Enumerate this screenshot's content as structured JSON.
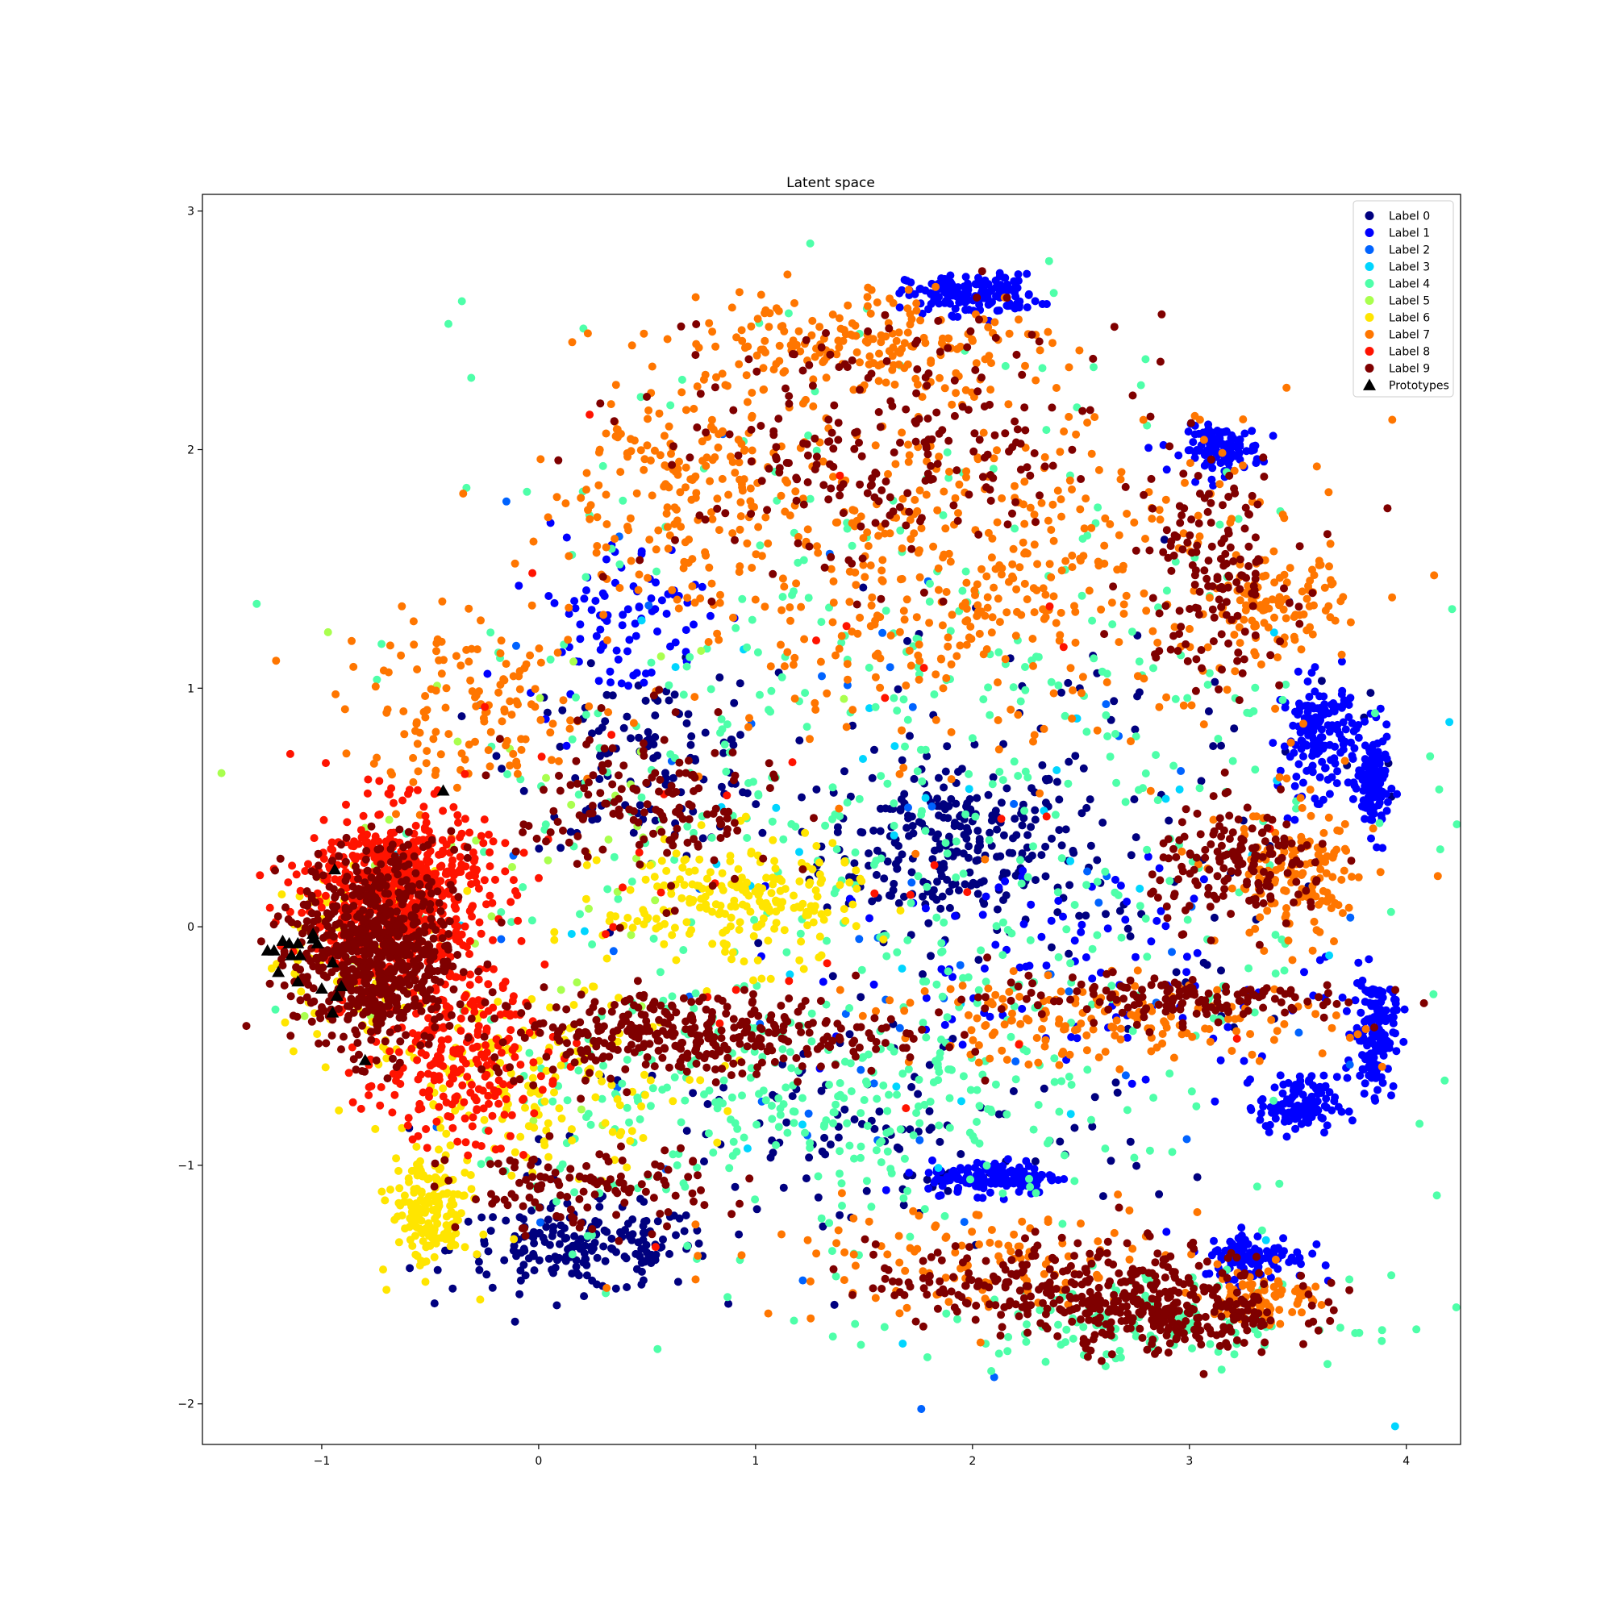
{
  "chart_data": {
    "type": "scatter",
    "title": "Latent space",
    "xlabel": "",
    "ylabel": "",
    "xlim": [
      -1.55,
      4.25
    ],
    "ylim": [
      -2.17,
      3.07
    ],
    "xticks": [
      -1,
      0,
      1,
      2,
      3,
      4
    ],
    "yticks": [
      -2,
      -1,
      0,
      1,
      2,
      3
    ],
    "xtick_labels": [
      "−1",
      "0",
      "1",
      "2",
      "3",
      "4"
    ],
    "ytick_labels": [
      "−2",
      "−1",
      "0",
      "1",
      "2",
      "3"
    ],
    "grid": false,
    "legend_position": "top-right",
    "series": [
      {
        "name": "Label 0",
        "color": "#00007f",
        "marker": "circle",
        "clusters": [
          {
            "center": [
              1.9,
              0.35
            ],
            "spread": [
              0.5,
              0.3
            ],
            "count": 260
          },
          {
            "center": [
              0.2,
              -1.35
            ],
            "spread": [
              0.5,
              0.15
            ],
            "count": 200
          },
          {
            "center": [
              0.5,
              0.7
            ],
            "spread": [
              0.5,
              0.3
            ],
            "count": 120
          },
          {
            "center": [
              1.5,
              -0.9
            ],
            "spread": [
              1.2,
              0.4
            ],
            "count": 120
          },
          {
            "center": [
              2.5,
              0.5
            ],
            "spread": [
              1.0,
              0.8
            ],
            "count": 100
          }
        ]
      },
      {
        "name": "Label 1",
        "color": "#0000ff",
        "marker": "circle",
        "clusters": [
          {
            "center": [
              2.0,
              2.65
            ],
            "spread": [
              0.25,
              0.07
            ],
            "count": 160
          },
          {
            "center": [
              3.15,
              2.0
            ],
            "spread": [
              0.15,
              0.08
            ],
            "count": 120
          },
          {
            "center": [
              3.6,
              0.8
            ],
            "spread": [
              0.15,
              0.2
            ],
            "count": 160
          },
          {
            "center": [
              3.85,
              0.6
            ],
            "spread": [
              0.06,
              0.18
            ],
            "count": 120
          },
          {
            "center": [
              3.85,
              -0.45
            ],
            "spread": [
              0.08,
              0.2
            ],
            "count": 150
          },
          {
            "center": [
              3.5,
              -0.75
            ],
            "spread": [
              0.15,
              0.1
            ],
            "count": 120
          },
          {
            "center": [
              2.1,
              -1.05
            ],
            "spread": [
              0.25,
              0.06
            ],
            "count": 150
          },
          {
            "center": [
              3.3,
              -1.38
            ],
            "spread": [
              0.2,
              0.08
            ],
            "count": 110
          },
          {
            "center": [
              0.35,
              1.3
            ],
            "spread": [
              0.35,
              0.3
            ],
            "count": 90
          },
          {
            "center": [
              2.5,
              -0.2
            ],
            "spread": [
              1.0,
              0.4
            ],
            "count": 110
          }
        ]
      },
      {
        "name": "Label 2",
        "color": "#0063ff",
        "marker": "circle",
        "clusters": [
          {
            "center": [
              1.5,
              0.0
            ],
            "spread": [
              1.8,
              1.5
            ],
            "count": 70
          }
        ]
      },
      {
        "name": "Label 3",
        "color": "#00d5ff",
        "marker": "circle",
        "clusters": [
          {
            "center": [
              1.5,
              0.2
            ],
            "spread": [
              1.8,
              1.5
            ],
            "count": 45
          }
        ]
      },
      {
        "name": "Label 4",
        "color": "#4effa9",
        "marker": "circle",
        "clusters": [
          {
            "center": [
              1.7,
              0.5
            ],
            "spread": [
              1.7,
              1.6
            ],
            "count": 550
          },
          {
            "center": [
              1.2,
              -0.8
            ],
            "spread": [
              1.2,
              0.35
            ],
            "count": 220
          },
          {
            "center": [
              2.8,
              -1.65
            ],
            "spread": [
              0.8,
              0.15
            ],
            "count": 130
          }
        ]
      },
      {
        "name": "Label 5",
        "color": "#a9ff4e",
        "marker": "circle",
        "clusters": [
          {
            "center": [
              0.0,
              0.3
            ],
            "spread": [
              1.0,
              0.8
            ],
            "count": 45
          }
        ]
      },
      {
        "name": "Label 6",
        "color": "#ffe500",
        "marker": "circle",
        "clusters": [
          {
            "center": [
              -0.5,
              -1.2
            ],
            "spread": [
              0.15,
              0.2
            ],
            "count": 180
          },
          {
            "center": [
              0.9,
              0.1
            ],
            "spread": [
              0.5,
              0.22
            ],
            "count": 220
          },
          {
            "center": [
              0.0,
              -0.65
            ],
            "spread": [
              0.6,
              0.3
            ],
            "count": 160
          },
          {
            "center": [
              -0.85,
              -0.1
            ],
            "spread": [
              0.35,
              0.3
            ],
            "count": 90
          }
        ]
      },
      {
        "name": "Label 7",
        "color": "#ff7600",
        "marker": "circle",
        "clusters": [
          {
            "center": [
              1.5,
              2.45
            ],
            "spread": [
              0.7,
              0.2
            ],
            "count": 200
          },
          {
            "center": [
              0.6,
              1.85
            ],
            "spread": [
              0.5,
              0.35
            ],
            "count": 160
          },
          {
            "center": [
              2.0,
              1.5
            ],
            "spread": [
              1.3,
              0.6
            ],
            "count": 500
          },
          {
            "center": [
              3.4,
              1.35
            ],
            "spread": [
              0.25,
              0.15
            ],
            "count": 100
          },
          {
            "center": [
              3.5,
              0.2
            ],
            "spread": [
              0.3,
              0.25
            ],
            "count": 140
          },
          {
            "center": [
              2.6,
              -0.4
            ],
            "spread": [
              0.9,
              0.15
            ],
            "count": 160
          },
          {
            "center": [
              3.35,
              -1.55
            ],
            "spread": [
              0.2,
              0.1
            ],
            "count": 80
          },
          {
            "center": [
              -0.3,
              0.9
            ],
            "spread": [
              0.5,
              0.3
            ],
            "count": 140
          },
          {
            "center": [
              2.0,
              -1.4
            ],
            "spread": [
              0.9,
              0.2
            ],
            "count": 120
          }
        ]
      },
      {
        "name": "Label 8",
        "color": "#ff1300",
        "marker": "circle",
        "clusters": [
          {
            "center": [
              -0.65,
              0.15
            ],
            "spread": [
              0.35,
              0.3
            ],
            "count": 600
          },
          {
            "center": [
              -0.4,
              -0.55
            ],
            "spread": [
              0.35,
              0.3
            ],
            "count": 250
          },
          {
            "center": [
              1.5,
              0.5
            ],
            "spread": [
              1.8,
              1.2
            ],
            "count": 40
          }
        ]
      },
      {
        "name": "Label 9",
        "color": "#7f0000",
        "marker": "circle",
        "clusters": [
          {
            "center": [
              -0.75,
              -0.1
            ],
            "spread": [
              0.3,
              0.35
            ],
            "count": 700
          },
          {
            "center": [
              0.7,
              -0.45
            ],
            "spread": [
              0.8,
              0.15
            ],
            "count": 350
          },
          {
            "center": [
              2.9,
              -0.3
            ],
            "spread": [
              0.7,
              0.08
            ],
            "count": 150
          },
          {
            "center": [
              2.5,
              -1.5
            ],
            "spread": [
              0.8,
              0.15
            ],
            "count": 300
          },
          {
            "center": [
              2.9,
              -1.65
            ],
            "spread": [
              0.45,
              0.12
            ],
            "count": 180
          },
          {
            "center": [
              3.25,
              0.25
            ],
            "spread": [
              0.35,
              0.2
            ],
            "count": 160
          },
          {
            "center": [
              3.1,
              1.5
            ],
            "spread": [
              0.3,
              0.4
            ],
            "count": 150
          },
          {
            "center": [
              1.6,
              2.0
            ],
            "spread": [
              0.9,
              0.45
            ],
            "count": 250
          },
          {
            "center": [
              0.5,
              0.5
            ],
            "spread": [
              0.5,
              0.3
            ],
            "count": 150
          },
          {
            "center": [
              0.2,
              -1.1
            ],
            "spread": [
              0.5,
              0.15
            ],
            "count": 120
          }
        ]
      }
    ],
    "prototypes": {
      "name": "Prototypes",
      "color": "#000000",
      "marker": "triangle",
      "points": [
        [
          -1.25,
          -0.1
        ],
        [
          -1.22,
          -0.1
        ],
        [
          -1.18,
          -0.06
        ],
        [
          -1.15,
          -0.07
        ],
        [
          -1.11,
          -0.07
        ],
        [
          -1.1,
          -0.12
        ],
        [
          -1.14,
          -0.12
        ],
        [
          -1.2,
          -0.19
        ],
        [
          -1.11,
          -0.23
        ],
        [
          -1.04,
          -0.05
        ],
        [
          -1.02,
          -0.07
        ],
        [
          -1.04,
          -0.03
        ],
        [
          -0.95,
          -0.15
        ],
        [
          -1.0,
          -0.26
        ],
        [
          -0.93,
          -0.29
        ],
        [
          -0.91,
          -0.25
        ],
        [
          -0.95,
          -0.36
        ],
        [
          -0.94,
          0.24
        ],
        [
          -0.8,
          -0.56
        ],
        [
          -0.44,
          0.57
        ]
      ]
    }
  }
}
